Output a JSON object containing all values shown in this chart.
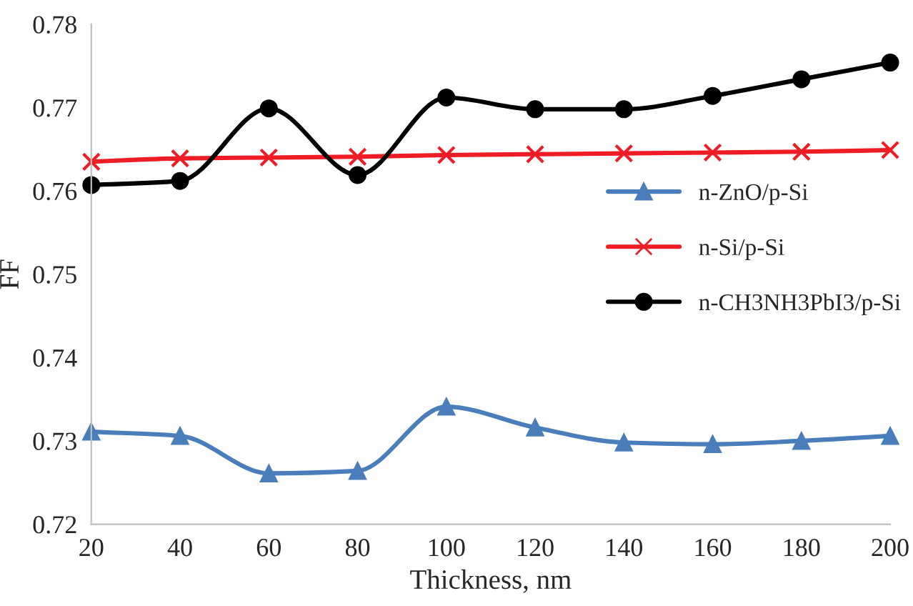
{
  "chart_data": {
    "type": "line",
    "xlabel": "Thickness, nm",
    "ylabel": "FF",
    "x": [
      20,
      40,
      60,
      80,
      100,
      120,
      140,
      160,
      180,
      200
    ],
    "series": [
      {
        "name": "n-ZnO/p-Si",
        "color": "#4a7ebb",
        "marker": "triangle",
        "values": [
          0.7311,
          0.7306,
          0.7261,
          0.7264,
          0.7341,
          0.7316,
          0.7298,
          0.7296,
          0.73,
          0.7306
        ]
      },
      {
        "name": "n-Si/p-Si",
        "color": "#ee1c25",
        "marker": "cross",
        "values": [
          0.7635,
          0.7639,
          0.764,
          0.7641,
          0.7643,
          0.7644,
          0.7645,
          0.7646,
          0.7647,
          0.7649
        ]
      },
      {
        "name": "n-CH3NH3PbI3/p-Si",
        "color": "#000000",
        "marker": "circle",
        "values": [
          0.7607,
          0.7612,
          0.7699,
          0.7619,
          0.7712,
          0.7698,
          0.7698,
          0.7714,
          0.7734,
          0.7754
        ]
      }
    ],
    "xlim": [
      20,
      200
    ],
    "xticks": [
      20,
      40,
      60,
      80,
      100,
      120,
      140,
      160,
      180,
      200
    ],
    "ylim": [
      0.72,
      0.78
    ],
    "yticks": [
      {
        "value": 0.72,
        "label": "0.72"
      },
      {
        "value": 0.73,
        "label": "0.73"
      },
      {
        "value": 0.74,
        "label": "0.74"
      },
      {
        "value": 0.75,
        "label": "0.75"
      },
      {
        "value": 0.76,
        "label": "0.76"
      },
      {
        "value": 0.77,
        "label": "0.77"
      },
      {
        "value": 0.78,
        "label": "0.78"
      }
    ],
    "grid": false,
    "legend": "right",
    "line_style": "solid"
  }
}
